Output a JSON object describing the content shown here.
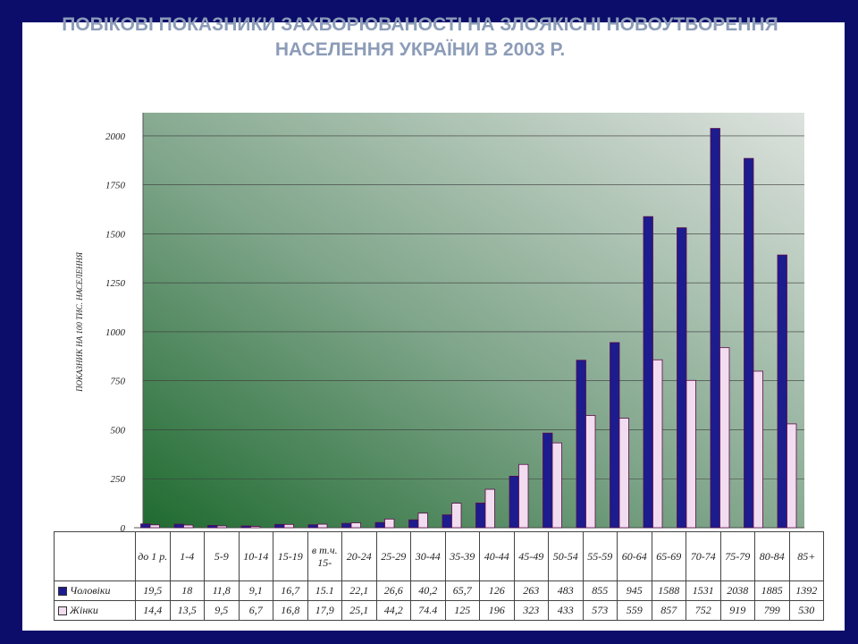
{
  "chart_data": {
    "type": "bar",
    "title": "ПОВІКОВІ ПОКАЗНИКИ ЗАХВОРЮВАНОСТІ НА ЗЛОЯКІСНІ НОВОУТВОРЕННЯ НАСЕЛЕННЯ УКРАЇНИ В 2003 Р.",
    "y_label": "ПОКАЗНИК НА 100 ТИС. НАСЕЛЕННЯ",
    "categories": [
      "до 1 р.",
      "1-4",
      "5-9",
      "10-14",
      "15-19",
      "в т.ч. 15-",
      "20-24",
      "25-29",
      "30-44",
      "35-39",
      "40-44",
      "45-49",
      "50-54",
      "55-59",
      "60-64",
      "65-69",
      "70-74",
      "75-79",
      "80-84",
      "85+"
    ],
    "series": [
      {
        "name": "Чоловіки",
        "color": "#1c1c8e",
        "values": [
          19.5,
          18,
          11.8,
          9.1,
          16.7,
          15.1,
          22.1,
          26.6,
          40.2,
          65.7,
          126,
          263,
          483,
          855,
          945,
          1588,
          1531,
          2038,
          1885,
          1392
        ],
        "value_labels": [
          "19,5",
          "18",
          "11,8",
          "9,1",
          "16,7",
          "15.1",
          "22,1",
          "26,6",
          "40,2",
          "65,7",
          "126",
          "263",
          "483",
          "855",
          "945",
          "1588",
          "1531",
          "2038",
          "1885",
          "1392"
        ]
      },
      {
        "name": "Жінки",
        "color": "#f2dcef",
        "values": [
          14.4,
          13.5,
          9.5,
          6.7,
          16.8,
          17.9,
          25.1,
          44.2,
          74.4,
          125,
          196,
          323,
          433,
          573,
          559,
          857,
          752,
          919,
          799,
          530
        ],
        "value_labels": [
          "14,4",
          "13,5",
          "9,5",
          "6,7",
          "16,8",
          "17,9",
          "25,1",
          "44,2",
          "74.4",
          "125",
          "196",
          "323",
          "433",
          "573",
          "559",
          "857",
          "752",
          "919",
          "799",
          "530"
        ]
      }
    ],
    "ylim": [
      0,
      2100
    ],
    "yticks": [
      0,
      250,
      500,
      750,
      1000,
      1250,
      1500,
      1750,
      2000
    ],
    "grid": true
  }
}
